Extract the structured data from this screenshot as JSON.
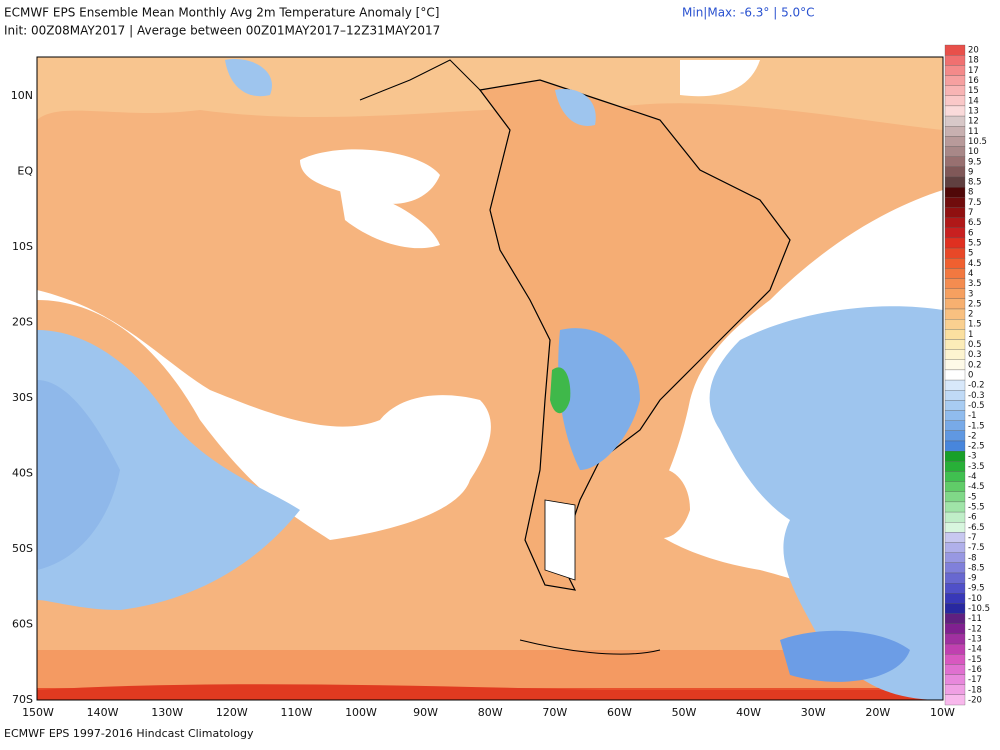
{
  "header": {
    "title": "ECMWF EPS Ensemble Mean Monthly Avg 2m Temperature Anomaly [°C]",
    "init": "Init: 00Z08MAY2017 | Average between 00Z01MAY2017–12Z31MAY2017",
    "minmax": "Min|Max: -6.3° | 5.0°C"
  },
  "map": {
    "lat_labels": [
      "10N",
      "EQ",
      "10S",
      "20S",
      "30S",
      "40S",
      "50S",
      "60S",
      "70S"
    ],
    "lon_labels": [
      "150W",
      "140W",
      "130W",
      "120W",
      "110W",
      "100W",
      "90W",
      "80W",
      "70W",
      "60W",
      "50W",
      "40W",
      "30W",
      "20W",
      "10W"
    ]
  },
  "colorbar": {
    "labels": [
      "20",
      "18",
      "17",
      "16",
      "15",
      "14",
      "13",
      "12",
      "11",
      "10.5",
      "10",
      "9.5",
      "9",
      "8.5",
      "8",
      "7.5",
      "7",
      "6.5",
      "6",
      "5.5",
      "5",
      "4.5",
      "4",
      "3.5",
      "3",
      "2.5",
      "2",
      "1.5",
      "1",
      "0.5",
      "0.3",
      "0.2",
      "0",
      "-0.2",
      "-0.3",
      "-0.5",
      "-1",
      "-1.5",
      "-2",
      "-2.5",
      "-3",
      "-3.5",
      "-4",
      "-4.5",
      "-5",
      "-5.5",
      "-6",
      "-6.5",
      "-7",
      "-7.5",
      "-8",
      "-8.5",
      "-9",
      "-9.5",
      "-10",
      "-10.5",
      "-11",
      "-12",
      "-13",
      "-14",
      "-15",
      "-16",
      "-17",
      "-18",
      "-20"
    ]
  },
  "footer": "ECMWF EPS 1997-2016 Hindcast Climatology"
}
